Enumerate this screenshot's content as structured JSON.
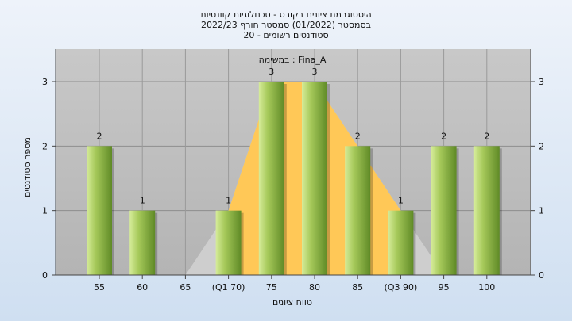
{
  "chart_data": {
    "type": "bar",
    "title_lines": [
      "היסטוגרמת ציונים בקורס - טכנולוגיות קוונטיות",
      "בסמסטר  (01/2022)  סמסטר חורף 2022/23",
      "סטודנטים רשומים - 20"
    ],
    "annotation": "במשימה : Fina_A",
    "categories": [
      "55",
      "60",
      "65",
      "(Q1 70)",
      "75",
      "80",
      "85",
      "(Q3 90)",
      "95",
      "100"
    ],
    "values": [
      2,
      1,
      0,
      1,
      3,
      3,
      2,
      1,
      2,
      2
    ],
    "value_labels": [
      "2",
      "1",
      "",
      "1",
      "3",
      "3",
      "2",
      "1",
      "2",
      "2"
    ],
    "xlabel": "טווח ציונים",
    "ylabel": "מספר סטודנטים",
    "ylim": [
      0,
      3
    ],
    "yticks": [
      "0",
      "1",
      "2",
      "3"
    ],
    "grid": true,
    "colors": {
      "bar_light": "#d6ec9a",
      "bar_mid": "#a6c95a",
      "bar_dark": "#5f8a26",
      "quartile_fill": "#ffc857",
      "plot_bg": "#bfbfbf"
    }
  }
}
